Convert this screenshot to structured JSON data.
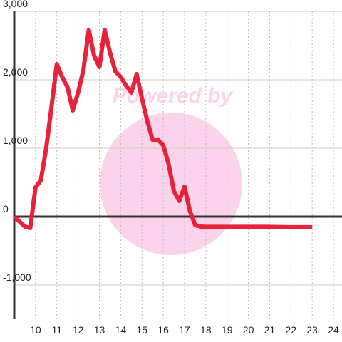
{
  "chart_data": {
    "type": "line",
    "watermark": "Powered by",
    "x": [
      9,
      9.5,
      9.75,
      10,
      10.25,
      10.5,
      10.75,
      11,
      11.25,
      11.5,
      11.75,
      12,
      12.25,
      12.5,
      12.75,
      13,
      13.25,
      13.5,
      13.75,
      14,
      14.25,
      14.5,
      14.75,
      15,
      15.25,
      15.5,
      15.75,
      16,
      16.25,
      16.5,
      16.75,
      17,
      17.25,
      17.5,
      17.75,
      18,
      19,
      20,
      21,
      22,
      23
    ],
    "series": [
      {
        "color": "#e8223a",
        "values": [
          0,
          -146,
          -167,
          427,
          531,
          1000,
          1604,
          2229,
          2042,
          1896,
          1552,
          1813,
          2146,
          2729,
          2354,
          2188,
          2729,
          2396,
          2125,
          2042,
          1917,
          1813,
          2083,
          1729,
          1396,
          1125,
          1125,
          1042,
          771,
          375,
          229,
          438,
          83,
          -125,
          -146,
          -150,
          -150,
          -150,
          -150,
          -155,
          -155
        ]
      }
    ],
    "xlim": [
      9,
      24.4
    ],
    "xticks": [
      10,
      11,
      12,
      13,
      14,
      15,
      16,
      17,
      18,
      19,
      20,
      21,
      22,
      23,
      24
    ],
    "ylim": [
      -1500,
      3000
    ],
    "yticks": [
      {
        "value": -1000,
        "label": "-1,000"
      },
      0,
      {
        "value": 1000,
        "label": "1,000"
      },
      {
        "value": 2000,
        "label": "2,000"
      },
      {
        "value": 3000,
        "label": "3,000"
      }
    ],
    "grid": true
  }
}
